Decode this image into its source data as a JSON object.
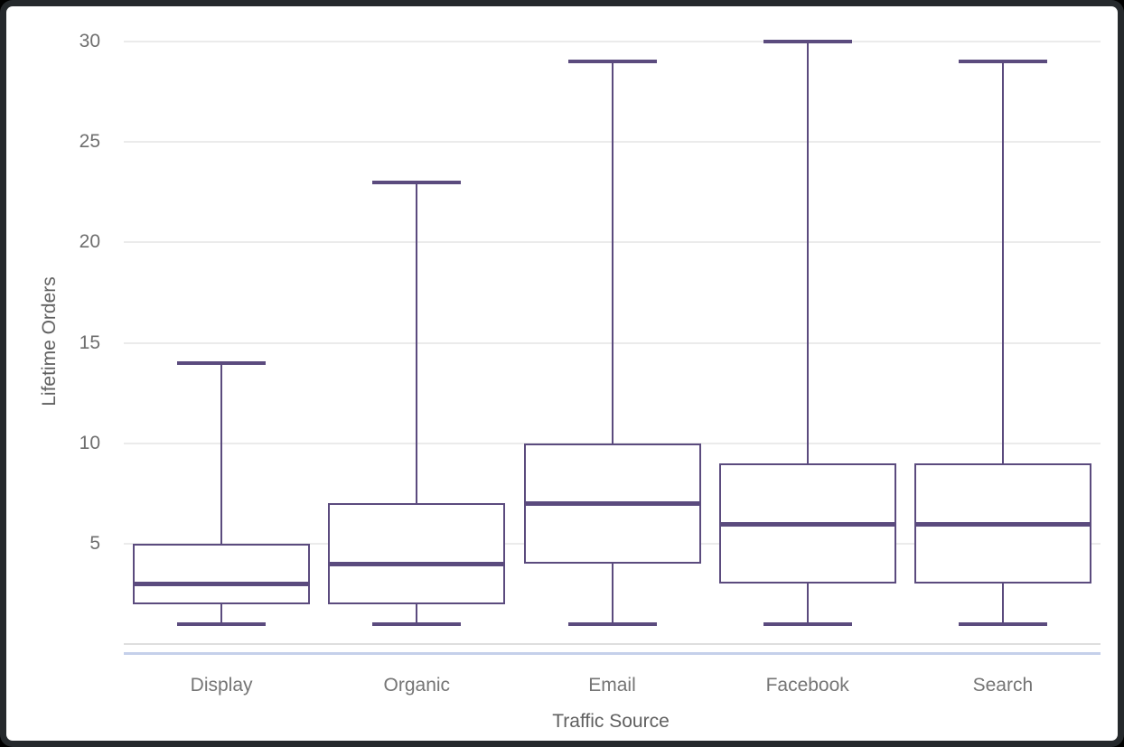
{
  "chart_data": {
    "type": "box",
    "title": "",
    "xlabel": "Traffic Source",
    "ylabel": "Lifetime Orders",
    "categories": [
      "Display",
      "Organic",
      "Email",
      "Facebook",
      "Search"
    ],
    "series": [
      {
        "name": "Display",
        "min": 1,
        "q1": 2,
        "median": 3,
        "q3": 5,
        "max": 14
      },
      {
        "name": "Organic",
        "min": 1,
        "q1": 2,
        "median": 4,
        "q3": 7,
        "max": 23
      },
      {
        "name": "Email",
        "min": 1,
        "q1": 4,
        "median": 7,
        "q3": 10,
        "max": 29
      },
      {
        "name": "Facebook",
        "min": 1,
        "q1": 3,
        "median": 6,
        "q3": 9,
        "max": 30
      },
      {
        "name": "Search",
        "min": 1,
        "q1": 3,
        "median": 6,
        "q3": 9,
        "max": 29
      }
    ],
    "ylim": [
      0,
      30
    ],
    "yticks": [
      5,
      10,
      15,
      20,
      25,
      30
    ],
    "grid": true,
    "legend": "none",
    "colors": {
      "box_stroke": "#5b4b7e",
      "gridline": "#ebebeb",
      "axis_line": "#dedede",
      "axis_accent_line": "#c5d0ea",
      "tick_text": "#6e6e6e",
      "category_text": "#757575",
      "axis_title_text": "#606060"
    }
  }
}
